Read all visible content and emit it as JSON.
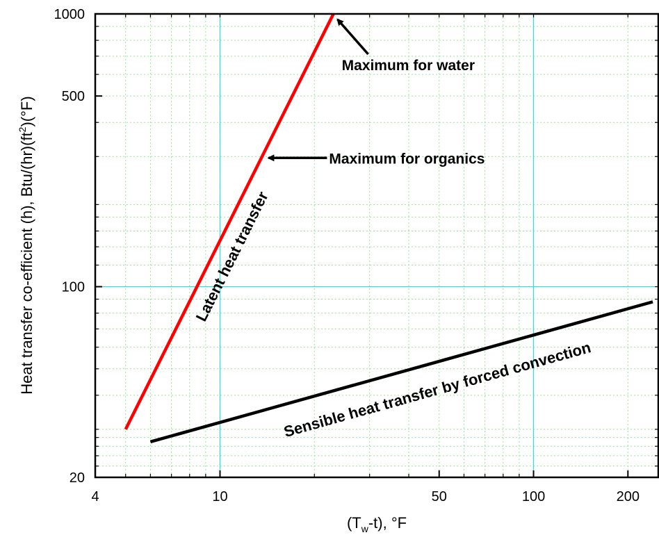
{
  "chart_data": {
    "type": "line",
    "x_scale": "log",
    "y_scale": "log",
    "xlim": [
      4,
      250
    ],
    "ylim": [
      20,
      1000
    ],
    "grid": true,
    "xlabel": {
      "pre": "(T",
      "sub": "w",
      "post": "-t), °F"
    },
    "ylabel": {
      "pre": "Heat transfer co-efficient (h), Btu/(hr)(ft",
      "sup": "2",
      "post": ")(°F)"
    },
    "x_ticks": [
      {
        "value": 4,
        "label": "4"
      },
      {
        "value": 10,
        "label": "10"
      },
      {
        "value": 50,
        "label": "50"
      },
      {
        "value": 100,
        "label": "100"
      },
      {
        "value": 200,
        "label": "200"
      }
    ],
    "y_ticks": [
      {
        "value": 20,
        "label": "20"
      },
      {
        "value": 100,
        "label": "100"
      },
      {
        "value": 500,
        "label": "500"
      },
      {
        "value": 1000,
        "label": "1000"
      }
    ],
    "series": [
      {
        "name": "Latent heat transfer",
        "color": "#ff0000",
        "x": [
          5,
          23
        ],
        "y": [
          30,
          1000
        ]
      },
      {
        "name": "Sensible heat transfer by forced convection",
        "color": "#000000",
        "x": [
          6,
          240
        ],
        "y": [
          27,
          88
        ]
      }
    ],
    "annotations": [
      {
        "text": "Maximum for water",
        "x": 23,
        "y": 1000
      },
      {
        "text": "Maximum for organics",
        "x": 14,
        "y": 300
      }
    ],
    "ref_lines": {
      "x": [
        10,
        100
      ],
      "y": [
        100
      ],
      "color": "#33dddd"
    }
  }
}
